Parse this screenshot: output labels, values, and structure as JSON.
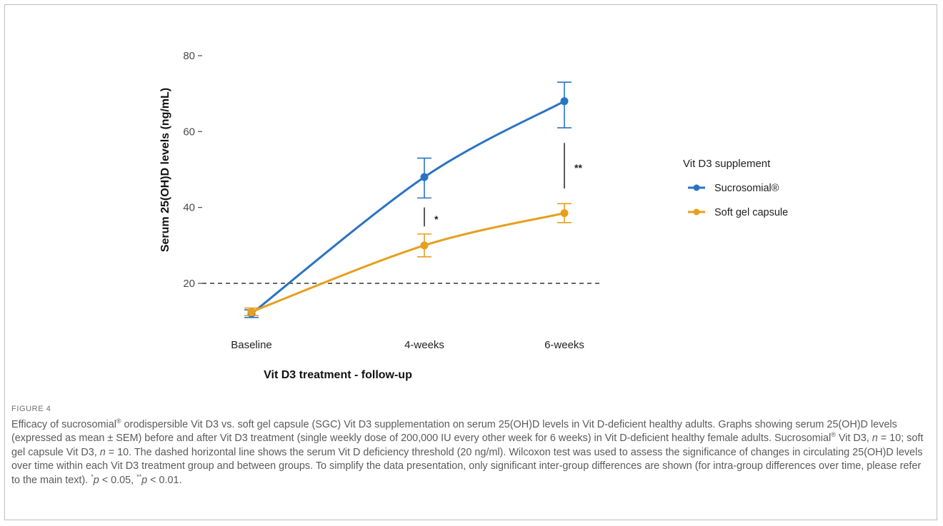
{
  "chart_data": {
    "type": "line",
    "categories": [
      "Baseline",
      "4-weeks",
      "6-weeks"
    ],
    "series": [
      {
        "name": "Sucrosomial®",
        "values": [
          12,
          48,
          68
        ],
        "error_low": [
          11,
          42.5,
          61
        ],
        "error_high": [
          13,
          53,
          73
        ],
        "color": "#2a73c2"
      },
      {
        "name": "Soft gel capsule",
        "values": [
          12.5,
          30,
          38.5
        ],
        "error_low": [
          11.5,
          27,
          36
        ],
        "error_high": [
          13.5,
          33,
          41
        ],
        "color": "#e79f1e"
      }
    ],
    "ylabel": "Serum 25(OH)D levels (ng/mL)",
    "xlabel": "Vit D3 treatment - follow-up",
    "yticks": [
      20,
      40,
      60,
      80
    ],
    "ylim": [
      9,
      80
    ],
    "reference_line": {
      "y": 20,
      "style": "dashed"
    },
    "legend": {
      "title": "Vit D3 supplement",
      "placement": "right"
    },
    "annotations": [
      {
        "category": "4-weeks",
        "from": 35,
        "to": 40,
        "label": "*"
      },
      {
        "category": "6-weeks",
        "from": 45,
        "to": 57,
        "label": "**"
      }
    ]
  },
  "figure": {
    "label": "FIGURE 4",
    "caption_parts": [
      "Efficacy of sucrosomial",
      "®",
      " orodispersible Vit D3 vs. soft gel capsule (SGC) Vit D3 supplementation on serum 25(OH)D levels in Vit D-deficient healthy adults. Graphs showing serum 25(OH)D levels (expressed as mean ± SEM) before and after Vit D3 treatment (single weekly dose of 200,000 IU every other week for 6 weeks) in Vit D-deficient healthy female adults. Sucrosomial",
      "®",
      " Vit D3, ",
      "n",
      " = 10; soft gel capsule Vit D3, ",
      "n",
      " = 10. The dashed horizontal line shows the serum Vit D deficiency threshold (20 ng/ml). Wilcoxon test was used to assess the significance of changes in circulating 25(OH)D levels over time within each Vit D3 treatment group and between groups. To simplify the data presentation, only significant inter-group differences are shown (for intra-group differences over time, please refer to the main text). ",
      "*",
      "p",
      " < 0.05, ",
      "**",
      "p",
      " < 0.01."
    ]
  }
}
